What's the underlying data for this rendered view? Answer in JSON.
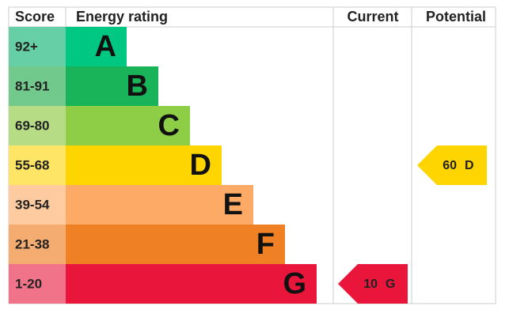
{
  "headers": {
    "score": "Score",
    "rating": "Energy rating",
    "current": "Current",
    "potential": "Potential"
  },
  "bands": [
    {
      "score": "92+",
      "letter": "A",
      "color": "#00c781",
      "light": "#66cfa6"
    },
    {
      "score": "81-91",
      "letter": "B",
      "color": "#19b459",
      "light": "#72c98c"
    },
    {
      "score": "69-80",
      "letter": "C",
      "color": "#8dce46",
      "light": "#b6dd86"
    },
    {
      "score": "55-68",
      "letter": "D",
      "color": "#ffd500",
      "light": "#ffe566"
    },
    {
      "score": "39-54",
      "letter": "E",
      "color": "#fcaa65",
      "light": "#fdcb9f"
    },
    {
      "score": "21-38",
      "letter": "F",
      "color": "#ef8023",
      "light": "#f5ac70"
    },
    {
      "score": "1-20",
      "letter": "G",
      "color": "#e9153b",
      "light": "#f17389"
    }
  ],
  "current": {
    "score": 10,
    "rating": "G"
  },
  "potential": {
    "score": 60,
    "rating": "D"
  }
}
